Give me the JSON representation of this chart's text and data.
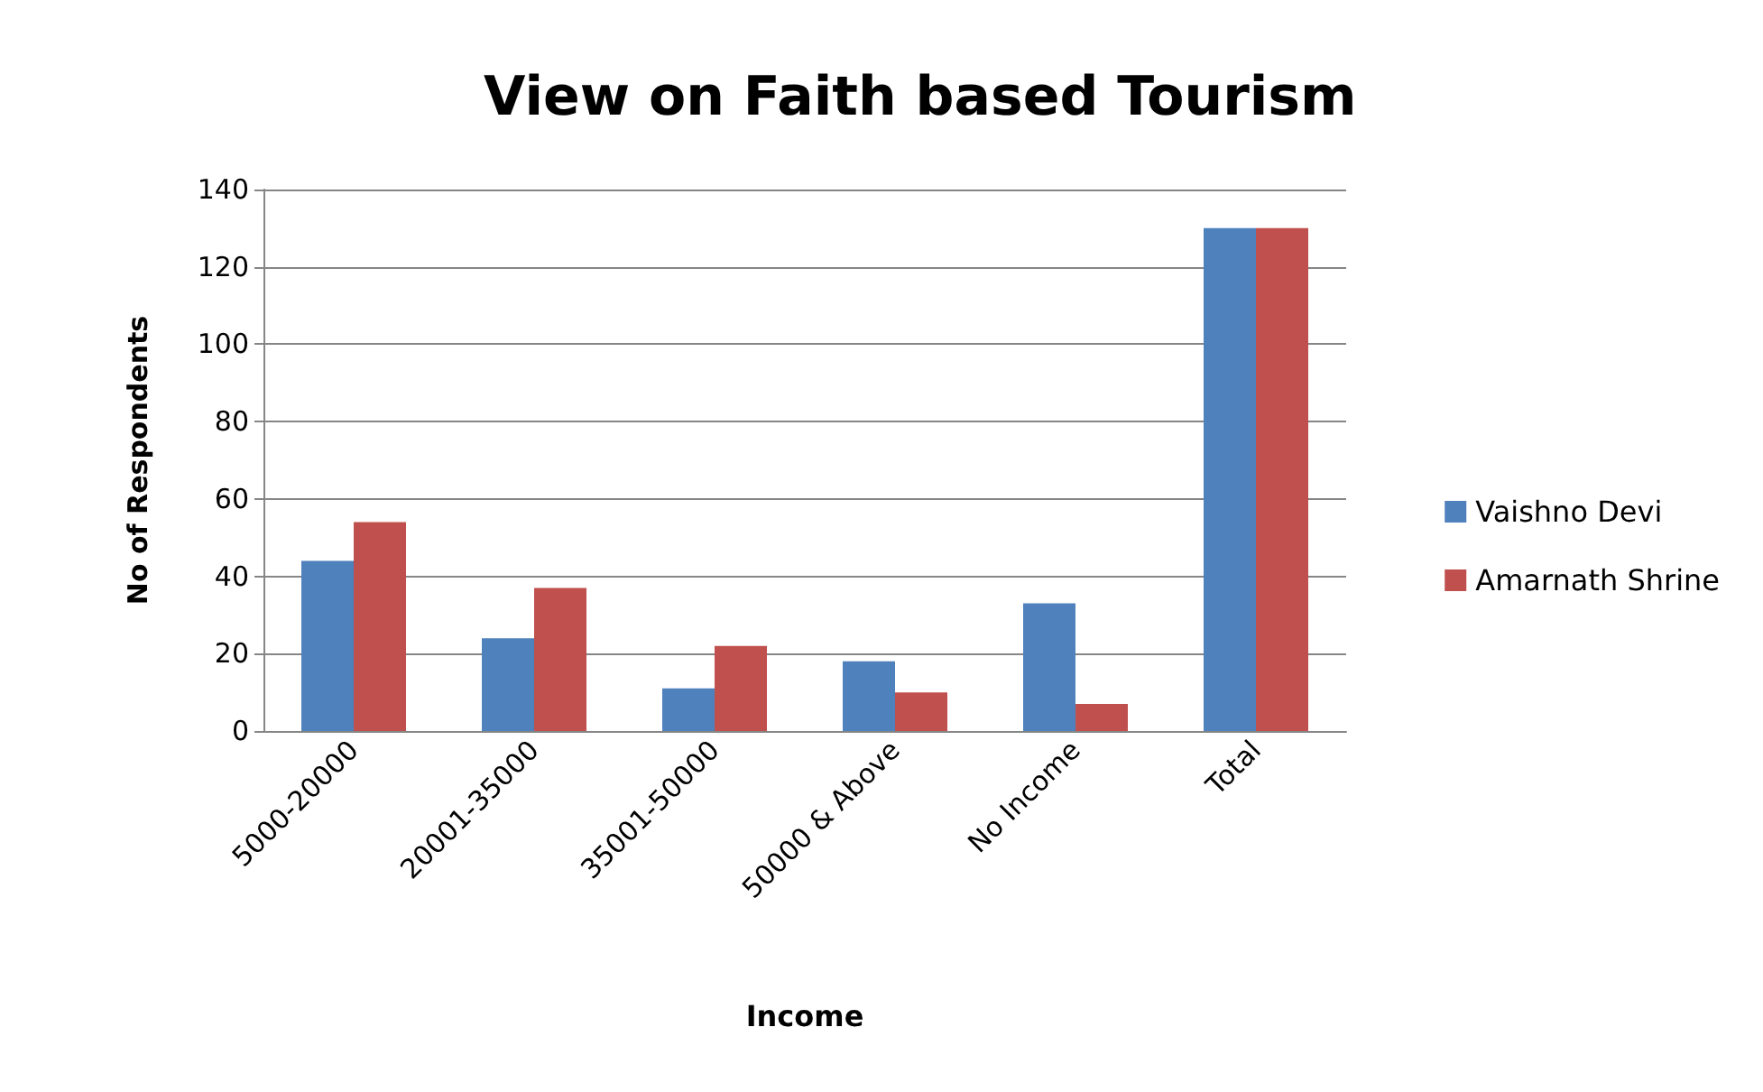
{
  "chart_data": {
    "type": "bar",
    "title": "View on Faith based Tourism",
    "xlabel": "Income",
    "ylabel": "No of Respondents",
    "categories": [
      "5000-20000",
      "20001-35000",
      "35001-50000",
      "50000 & Above",
      "No Income",
      "Total"
    ],
    "series": [
      {
        "name": "Vaishno Devi",
        "color": "#4f81bd",
        "values": [
          44,
          24,
          11,
          18,
          33,
          130
        ]
      },
      {
        "name": "Amarnath Shrine",
        "color": "#c0504d",
        "values": [
          54,
          37,
          22,
          10,
          7,
          130
        ]
      }
    ],
    "ylim": [
      0,
      140
    ],
    "yticks": [
      0,
      20,
      40,
      60,
      80,
      100,
      120,
      140
    ],
    "grid": "y",
    "legend": "right"
  }
}
